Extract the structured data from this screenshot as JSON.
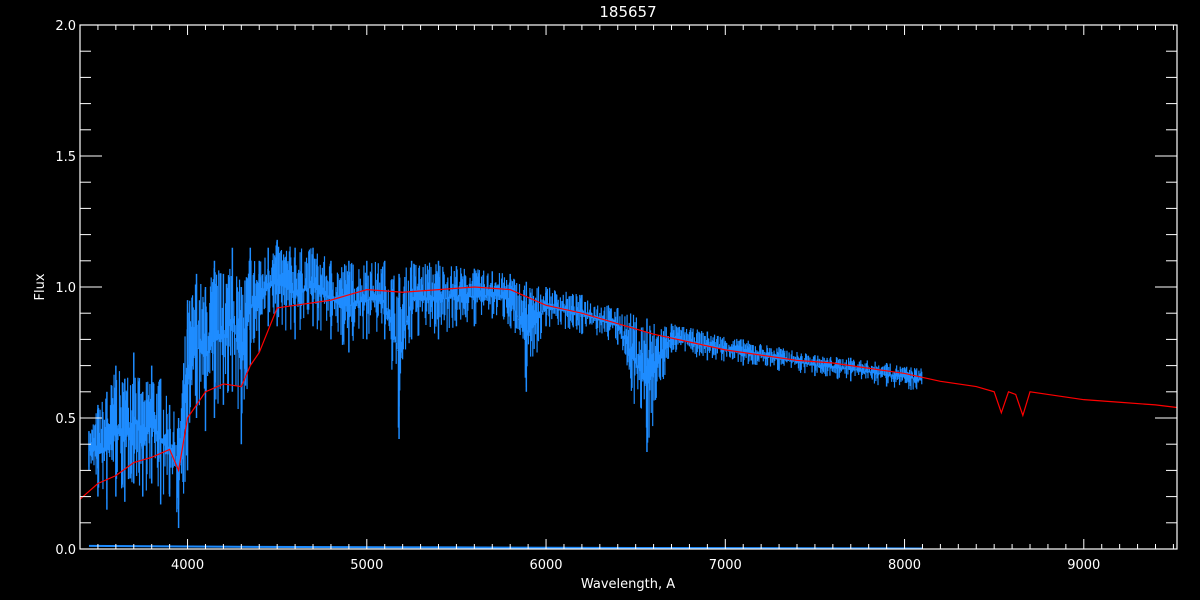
{
  "chart_data": {
    "type": "line",
    "title": "185657",
    "xlabel": "Wavelength, A",
    "ylabel": "Flux",
    "xlim": [
      3400,
      9520
    ],
    "ylim": [
      0,
      2.0
    ],
    "x_major_ticks": [
      4000,
      5000,
      6000,
      7000,
      8000,
      9000
    ],
    "x_tick_labels": [
      "4000",
      "5000",
      "6000",
      "7000",
      "8000",
      "9000"
    ],
    "y_major_ticks": [
      0,
      0.5,
      1.0,
      1.5,
      2.0
    ],
    "y_tick_labels": [
      "0.0",
      "0.5",
      "1.0",
      "1.5",
      "2.0"
    ],
    "x_minor_step": 100,
    "y_minor_step": 0.1,
    "grid": false,
    "background": "#000000",
    "axis_color": "#ffffff",
    "series": [
      {
        "kind": "observed-band",
        "color": "#1e8cff",
        "columns": [
          "wavelength",
          "flux_min",
          "flux_max"
        ],
        "points": [
          [
            3450,
            0.3,
            0.45
          ],
          [
            3500,
            0.2,
            0.55
          ],
          [
            3550,
            0.15,
            0.6
          ],
          [
            3600,
            0.2,
            0.7
          ],
          [
            3650,
            0.18,
            0.65
          ],
          [
            3700,
            0.25,
            0.75
          ],
          [
            3750,
            0.2,
            0.6
          ],
          [
            3800,
            0.25,
            0.7
          ],
          [
            3850,
            0.17,
            0.65
          ],
          [
            3900,
            0.2,
            0.55
          ],
          [
            3950,
            0.08,
            0.5
          ],
          [
            4000,
            0.3,
            0.95
          ],
          [
            4050,
            0.5,
            1.05
          ],
          [
            4100,
            0.45,
            1.0
          ],
          [
            4150,
            0.5,
            1.1
          ],
          [
            4200,
            0.55,
            1.05
          ],
          [
            4250,
            0.6,
            1.15
          ],
          [
            4300,
            0.4,
            1.0
          ],
          [
            4350,
            0.7,
            1.15
          ],
          [
            4400,
            0.75,
            1.1
          ],
          [
            4450,
            0.85,
            1.15
          ],
          [
            4500,
            0.85,
            1.18
          ],
          [
            4600,
            0.8,
            1.15
          ],
          [
            4700,
            0.85,
            1.15
          ],
          [
            4800,
            0.8,
            1.1
          ],
          [
            4900,
            0.75,
            1.1
          ],
          [
            5000,
            0.8,
            1.1
          ],
          [
            5100,
            0.8,
            1.1
          ],
          [
            5180,
            0.42,
            1.05
          ],
          [
            5250,
            0.8,
            1.1
          ],
          [
            5400,
            0.8,
            1.1
          ],
          [
            5500,
            0.85,
            1.08
          ],
          [
            5600,
            0.85,
            1.07
          ],
          [
            5700,
            0.88,
            1.06
          ],
          [
            5800,
            0.85,
            1.05
          ],
          [
            5890,
            0.6,
            1.02
          ],
          [
            6000,
            0.85,
            1.0
          ],
          [
            6200,
            0.82,
            0.97
          ],
          [
            6400,
            0.78,
            0.92
          ],
          [
            6563,
            0.37,
            0.88
          ],
          [
            6700,
            0.75,
            0.86
          ],
          [
            6900,
            0.72,
            0.83
          ],
          [
            7100,
            0.7,
            0.8
          ],
          [
            7300,
            0.68,
            0.77
          ],
          [
            7500,
            0.66,
            0.74
          ],
          [
            7700,
            0.64,
            0.73
          ],
          [
            7900,
            0.62,
            0.71
          ],
          [
            8100,
            0.6,
            0.69
          ]
        ]
      },
      {
        "kind": "model",
        "color": "#ff0000",
        "points": [
          [
            3400,
            0.19
          ],
          [
            3500,
            0.25
          ],
          [
            3600,
            0.28
          ],
          [
            3700,
            0.33
          ],
          [
            3800,
            0.35
          ],
          [
            3900,
            0.38
          ],
          [
            3950,
            0.3
          ],
          [
            4000,
            0.5
          ],
          [
            4100,
            0.6
          ],
          [
            4200,
            0.63
          ],
          [
            4300,
            0.62
          ],
          [
            4350,
            0.7
          ],
          [
            4400,
            0.75
          ],
          [
            4500,
            0.92
          ],
          [
            4600,
            0.93
          ],
          [
            4700,
            0.94
          ],
          [
            4800,
            0.95
          ],
          [
            4900,
            0.97
          ],
          [
            5000,
            0.99
          ],
          [
            5200,
            0.98
          ],
          [
            5400,
            0.99
          ],
          [
            5600,
            1.0
          ],
          [
            5800,
            0.99
          ],
          [
            6000,
            0.93
          ],
          [
            6200,
            0.9
          ],
          [
            6400,
            0.86
          ],
          [
            6600,
            0.82
          ],
          [
            6800,
            0.79
          ],
          [
            7000,
            0.76
          ],
          [
            7200,
            0.74
          ],
          [
            7400,
            0.72
          ],
          [
            7600,
            0.71
          ],
          [
            7800,
            0.69
          ],
          [
            8000,
            0.67
          ],
          [
            8200,
            0.64
          ],
          [
            8400,
            0.62
          ],
          [
            8500,
            0.6
          ],
          [
            8540,
            0.52
          ],
          [
            8580,
            0.6
          ],
          [
            8620,
            0.59
          ],
          [
            8660,
            0.51
          ],
          [
            8700,
            0.6
          ],
          [
            8800,
            0.59
          ],
          [
            9000,
            0.57
          ],
          [
            9200,
            0.56
          ],
          [
            9400,
            0.55
          ],
          [
            9520,
            0.54
          ]
        ]
      },
      {
        "kind": "error",
        "color": "#1e8cff",
        "points": [
          [
            3450,
            0.012
          ],
          [
            3900,
            0.01
          ],
          [
            4400,
            0.008
          ],
          [
            5500,
            0.006
          ],
          [
            6500,
            0.004
          ],
          [
            7500,
            0.003
          ],
          [
            8100,
            0.002
          ]
        ]
      }
    ]
  }
}
